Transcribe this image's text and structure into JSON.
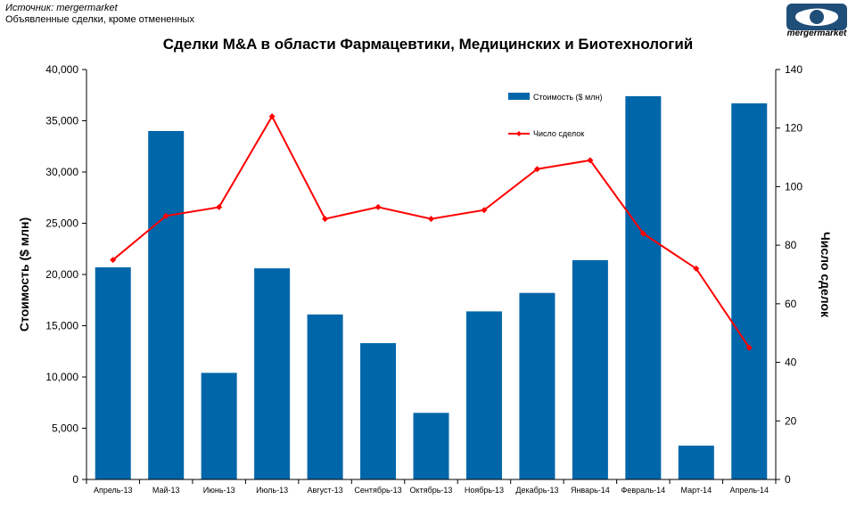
{
  "header": {
    "source": "Источник: mergermarket",
    "subtitle": "Объявленные сделки, кроме отмененных",
    "title": "Сделки M&A в области Фармацевтики, Медицинских и Биотехнологий",
    "logo_text": "mergermarket"
  },
  "colors": {
    "bar": "#0066AA",
    "line": "#FF0000",
    "logo": "#1F4E79"
  },
  "chart_data": {
    "type": "bar",
    "title": "Сделки M&A в области Фармацевтики, Медицинских и Биотехнологий",
    "categories": [
      "Апрель-13",
      "Май-13",
      "Июнь-13",
      "Июль-13",
      "Август-13",
      "Сентябрь-13",
      "Октябрь-13",
      "Ноябрь-13",
      "Декабрь-13",
      "Январь-14",
      "Февраль-14",
      "Март-14",
      "Апрель-14"
    ],
    "series": [
      {
        "name": "Стоимость  ($ млн)",
        "type": "bar",
        "axis": "left",
        "values": [
          20700,
          34000,
          10400,
          20600,
          16100,
          13300,
          6500,
          16400,
          18200,
          21400,
          37400,
          3300,
          36700
        ]
      },
      {
        "name": "Число сделок",
        "type": "line",
        "axis": "right",
        "values": [
          75,
          90,
          93,
          124,
          89,
          93,
          89,
          92,
          106,
          109,
          84,
          72,
          45
        ]
      }
    ],
    "ylabel": "Стоимость ($ млн)",
    "y2label": "Число сделок",
    "ylim": [
      0,
      40000
    ],
    "y2lim": [
      0,
      140
    ],
    "yticks": [
      "0",
      "5,000",
      "10,000",
      "15,000",
      "20,000",
      "25,000",
      "30,000",
      "35,000",
      "40,000"
    ],
    "y2ticks": [
      "0",
      "20",
      "40",
      "60",
      "80",
      "100",
      "120",
      "140"
    ],
    "legend_position": "top-right",
    "grid": false
  }
}
